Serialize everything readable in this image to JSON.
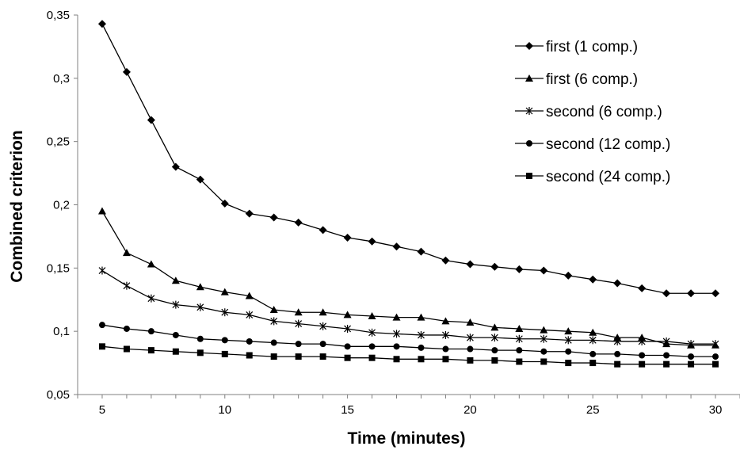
{
  "chart_data": {
    "type": "line",
    "title": "",
    "xlabel": "Time (minutes)",
    "ylabel": "Combined criterion",
    "xlim": [
      4,
      31
    ],
    "ylim": [
      0.05,
      0.35
    ],
    "x_ticks": [
      5,
      10,
      15,
      20,
      25,
      30
    ],
    "x_tick_labels": [
      "5",
      "10",
      "15",
      "20",
      "25",
      "30"
    ],
    "y_ticks": [
      0.05,
      0.1,
      0.15,
      0.2,
      0.25,
      0.3,
      0.35
    ],
    "y_tick_labels": [
      "0,05",
      "0,1",
      "0,15",
      "0,2",
      "0,25",
      "0,3",
      "0,35"
    ],
    "grid": false,
    "legend_position": "top-right",
    "x": [
      5,
      6,
      7,
      8,
      9,
      10,
      11,
      12,
      13,
      14,
      15,
      16,
      17,
      18,
      19,
      20,
      21,
      22,
      23,
      24,
      25,
      26,
      27,
      28,
      29,
      30
    ],
    "series": [
      {
        "name": "first (1 comp.)",
        "marker": "diamond",
        "values": [
          0.343,
          0.305,
          0.267,
          0.23,
          0.22,
          0.201,
          0.193,
          0.19,
          0.186,
          0.18,
          0.174,
          0.171,
          0.167,
          0.163,
          0.156,
          0.153,
          0.151,
          0.149,
          0.148,
          0.144,
          0.141,
          0.138,
          0.134,
          0.13,
          0.13,
          0.13
        ]
      },
      {
        "name": "first (6 comp.)",
        "marker": "triangle",
        "values": [
          0.195,
          0.162,
          0.153,
          0.14,
          0.135,
          0.131,
          0.128,
          0.117,
          0.115,
          0.115,
          0.113,
          0.112,
          0.111,
          0.111,
          0.108,
          0.107,
          0.103,
          0.102,
          0.101,
          0.1,
          0.099,
          0.095,
          0.095,
          0.09,
          0.089,
          0.089
        ]
      },
      {
        "name": "second (6 comp.)",
        "marker": "asterisk",
        "values": [
          0.148,
          0.136,
          0.126,
          0.121,
          0.119,
          0.115,
          0.113,
          0.108,
          0.106,
          0.104,
          0.102,
          0.099,
          0.098,
          0.097,
          0.097,
          0.095,
          0.095,
          0.094,
          0.094,
          0.093,
          0.093,
          0.092,
          0.092,
          0.092,
          0.09,
          0.09
        ]
      },
      {
        "name": "second (12 comp.)",
        "marker": "circle",
        "values": [
          0.105,
          0.102,
          0.1,
          0.097,
          0.094,
          0.093,
          0.092,
          0.091,
          0.09,
          0.09,
          0.088,
          0.088,
          0.088,
          0.087,
          0.086,
          0.086,
          0.085,
          0.085,
          0.084,
          0.084,
          0.082,
          0.082,
          0.081,
          0.081,
          0.08,
          0.08
        ]
      },
      {
        "name": "second (24 comp.)",
        "marker": "square",
        "values": [
          0.088,
          0.086,
          0.085,
          0.084,
          0.083,
          0.082,
          0.081,
          0.08,
          0.08,
          0.08,
          0.079,
          0.079,
          0.078,
          0.078,
          0.078,
          0.077,
          0.077,
          0.076,
          0.076,
          0.075,
          0.075,
          0.074,
          0.074,
          0.074,
          0.074,
          0.074
        ]
      }
    ]
  }
}
